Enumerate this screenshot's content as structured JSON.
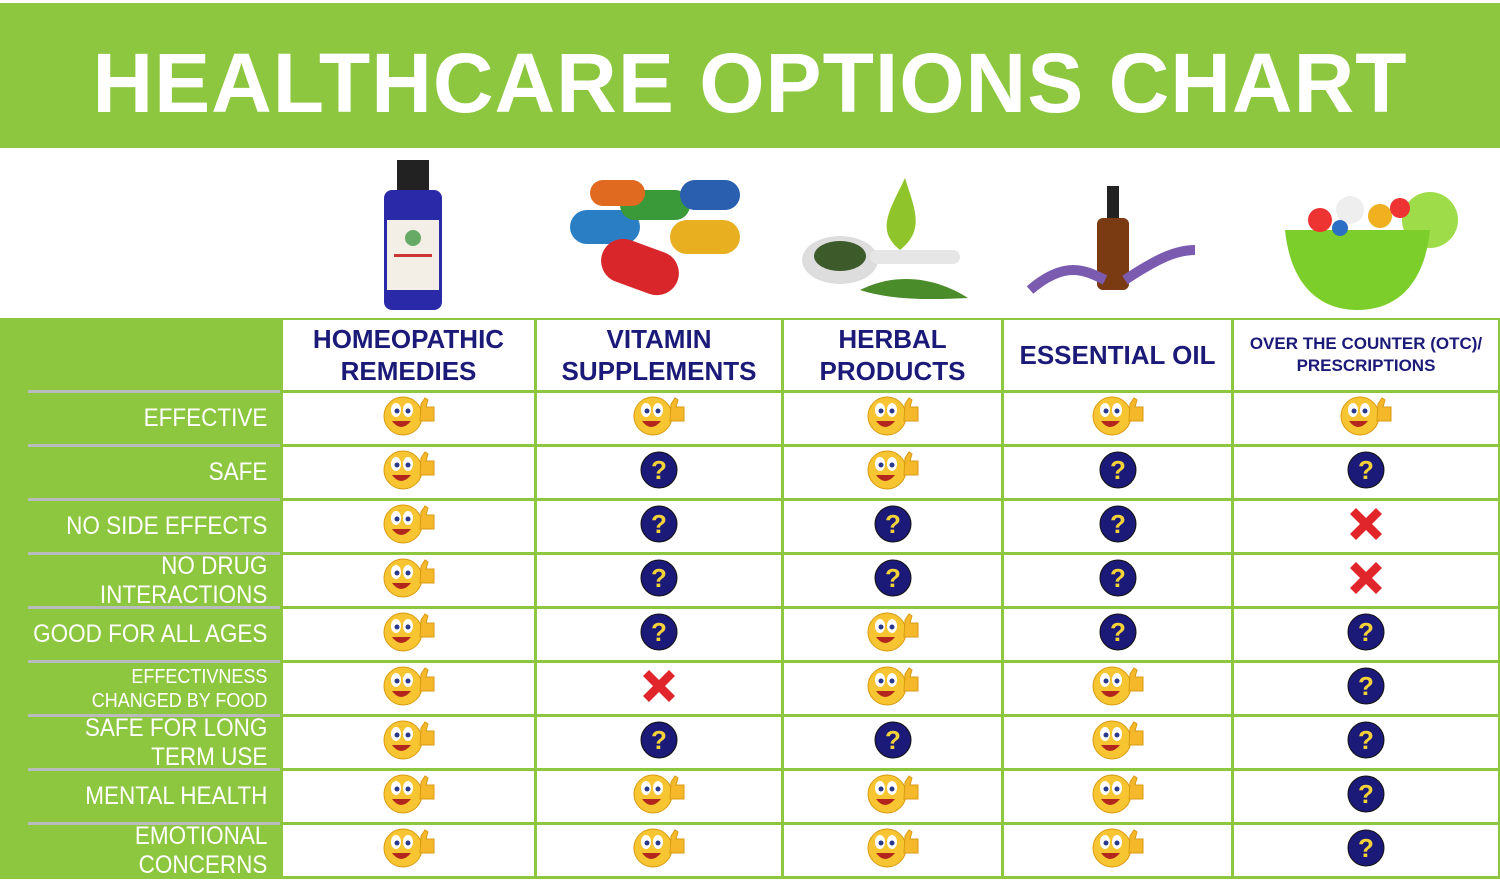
{
  "title": "HEALTHCARE OPTIONS CHART",
  "colors": {
    "brand_green": "#8dc63f",
    "heading_navy": "#1c1a78",
    "yes": "#f7c531",
    "unknown": "#1c1a78",
    "no": "#e0262b"
  },
  "legend_icons": {
    "yes": "thumbs-up-smiley-icon",
    "unknown": "question-mark-icon",
    "no": "red-x-icon"
  },
  "chart_data": {
    "type": "table",
    "columns": [
      "HOMEOPATHIC\nREMEDIES",
      "VITAMIN\nSUPPLEMENTS",
      "HERBAL\nPRODUCTS",
      "ESSENTIAL OIL",
      "OVER THE COUNTER (OTC)/\nPRESCRIPTIONS"
    ],
    "column_images": [
      "remedy-bottle-image",
      "vitamin-capsules-image",
      "herbal-leaves-image",
      "essential-oil-lavender-image",
      "pill-bowl-image"
    ],
    "rows": [
      {
        "label": "EFFECTIVE",
        "values": [
          "yes",
          "yes",
          "yes",
          "yes",
          "yes"
        ]
      },
      {
        "label": "SAFE",
        "values": [
          "yes",
          "unknown",
          "yes",
          "unknown",
          "unknown"
        ]
      },
      {
        "label": "NO SIDE EFFECTS",
        "values": [
          "yes",
          "unknown",
          "unknown",
          "unknown",
          "no"
        ]
      },
      {
        "label": "NO DRUG INTERACTIONS",
        "values": [
          "yes",
          "unknown",
          "unknown",
          "unknown",
          "no"
        ]
      },
      {
        "label": "GOOD FOR ALL AGES",
        "values": [
          "yes",
          "unknown",
          "yes",
          "unknown",
          "unknown"
        ]
      },
      {
        "label": "EFFECTIVNESS\nCHANGED BY FOOD",
        "values": [
          "yes",
          "no",
          "yes",
          "yes",
          "unknown"
        ]
      },
      {
        "label": "SAFE FOR LONG TERM USE",
        "values": [
          "yes",
          "unknown",
          "unknown",
          "yes",
          "unknown"
        ]
      },
      {
        "label": "MENTAL HEALTH",
        "values": [
          "yes",
          "yes",
          "yes",
          "yes",
          "unknown"
        ]
      },
      {
        "label": "EMOTIONAL CONCERNS",
        "values": [
          "yes",
          "yes",
          "yes",
          "yes",
          "unknown"
        ]
      }
    ]
  }
}
